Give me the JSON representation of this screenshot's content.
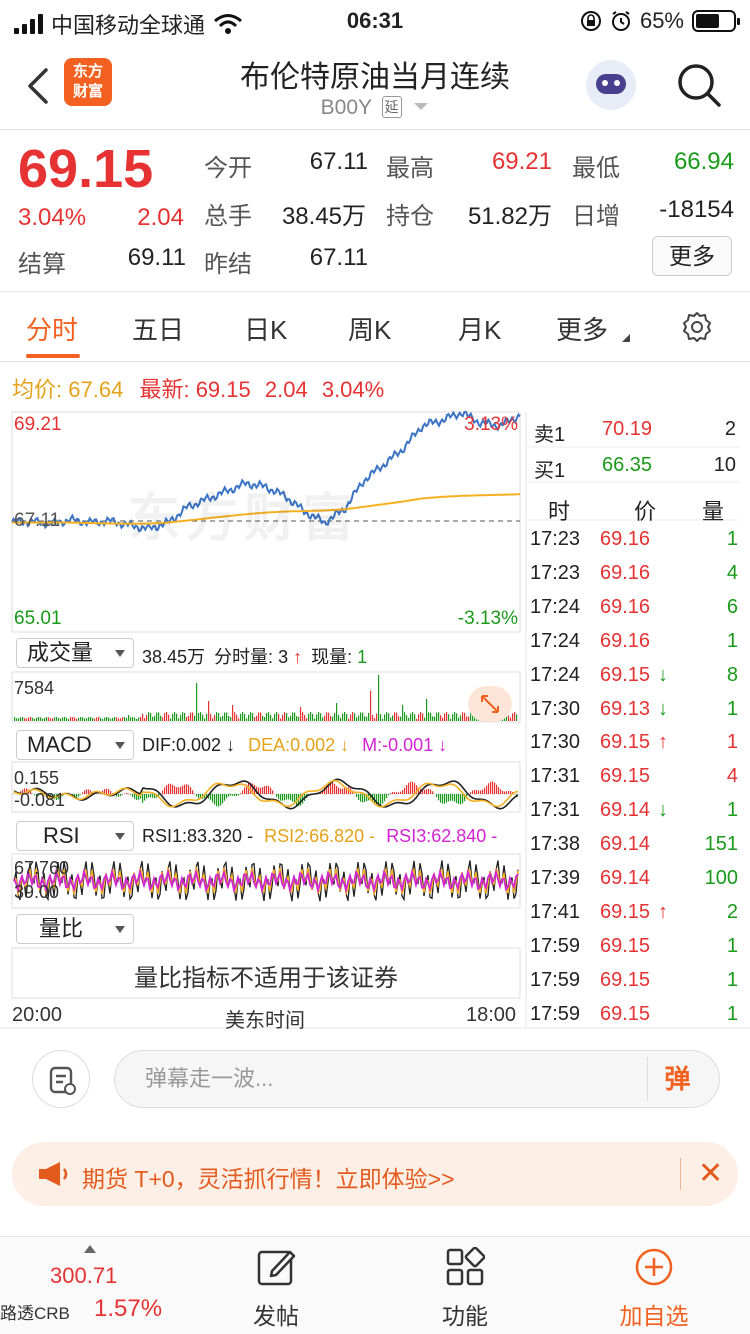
{
  "status_bar": {
    "carrier": "中国移动全球通",
    "time": "06:31",
    "battery": "65%",
    "battery_level": 0.65
  },
  "header": {
    "logo_text_1": "东方",
    "logo_text_2": "财富",
    "title": "布伦特原油当月连续",
    "code": "B00Y",
    "delay_tag": "延"
  },
  "quote": {
    "price": "69.15",
    "change_pct": "3.04%",
    "change": "2.04",
    "stats": [
      {
        "label": "今开",
        "value": "67.11",
        "color": "#222"
      },
      {
        "label": "最高",
        "value": "69.21",
        "color": "#e63232"
      },
      {
        "label": "最低",
        "value": "66.94",
        "color": "#1a9a1a"
      },
      {
        "label": "总手",
        "value": "38.45万",
        "color": "#222"
      },
      {
        "label": "持仓",
        "value": "51.82万",
        "color": "#222"
      },
      {
        "label": "日增",
        "value": "-18154",
        "color": "#222"
      },
      {
        "label": "结算",
        "value": "69.11",
        "color": "#222"
      },
      {
        "label": "昨结",
        "value": "67.11",
        "color": "#222"
      }
    ],
    "more_button": "更多"
  },
  "tabs": [
    "分时",
    "五日",
    "日K",
    "周K",
    "月K",
    "更多"
  ],
  "info_line": {
    "avg_label": "均价:",
    "avg_value": "67.64",
    "latest_label": "最新:",
    "latest_value": "69.15",
    "latest_change": "2.04",
    "latest_pct": "3.04%"
  },
  "price_chart": {
    "top_left": "69.21",
    "top_right": "3.13%",
    "mid_left": "67.11",
    "bottom_left": "65.01",
    "bottom_right": "-3.13%",
    "watermark": "东方财富",
    "time_start": "20:00",
    "time_mid": "美东时间",
    "time_end": "18:00"
  },
  "chart_data": {
    "type": "line",
    "series": [
      {
        "values": [
          67.1,
          67.12,
          67.08,
          67.15,
          67.1,
          67.13,
          67.05,
          66.98,
          67.1,
          67.4,
          67.55,
          67.7,
          67.85,
          67.78,
          67.6,
          67.3,
          67.1,
          67.35,
          67.9,
          68.2,
          68.5,
          68.95,
          69.05,
          69.2,
          69.0,
          68.95,
          69.15
        ]
      },
      {
        "values": [
          67.1,
          67.1,
          67.1,
          67.1,
          67.09,
          67.08,
          67.08,
          67.08,
          67.1,
          67.14,
          67.18,
          67.22,
          67.26,
          67.29,
          67.31,
          67.32,
          67.33,
          67.35,
          67.4,
          67.45,
          67.5,
          67.56,
          67.59,
          67.61,
          67.62,
          67.63,
          67.64
        ]
      }
    ],
    "ylim": [
      65.01,
      69.21
    ],
    "reference": 67.11
  },
  "volume_panel": {
    "selector": "成交量",
    "total": "38.45万",
    "period_label": "分时量:",
    "period_value": "3",
    "now_label": "现量:",
    "now_value": "1",
    "max_label": "7584"
  },
  "macd_panel": {
    "selector": "MACD",
    "dif": "DIF:0.002",
    "dea": "DEA:0.002",
    "m": "M:-0.001",
    "upper": "0.155",
    "lower": "-0.081"
  },
  "rsi_panel": {
    "selector": "RSI",
    "rsi1": "RSI1:83.320",
    "rsi2": "RSI2:66.820",
    "rsi3": "RSI3:62.840",
    "upper": "67.760",
    "lower": "39.00"
  },
  "ratio_panel": {
    "selector": "量比",
    "message": "量比指标不适用于该证券"
  },
  "order_book": [
    {
      "label": "卖1",
      "price": "70.19",
      "qty": "2",
      "price_color": "#e63232"
    },
    {
      "label": "买1",
      "price": "66.35",
      "qty": "10",
      "price_color": "#1a9a1a"
    }
  ],
  "ticks_header": {
    "time": "时",
    "price": "价",
    "qty": "量"
  },
  "ticks": [
    {
      "time": "17:23",
      "price": "69.16",
      "arrow": "",
      "qty": "1",
      "qty_color": "#1a9a1a"
    },
    {
      "time": "17:23",
      "price": "69.16",
      "arrow": "",
      "qty": "4",
      "qty_color": "#1a9a1a"
    },
    {
      "time": "17:24",
      "price": "69.16",
      "arrow": "",
      "qty": "6",
      "qty_color": "#1a9a1a"
    },
    {
      "time": "17:24",
      "price": "69.16",
      "arrow": "",
      "qty": "1",
      "qty_color": "#1a9a1a"
    },
    {
      "time": "17:24",
      "price": "69.15",
      "arrow": "↓",
      "qty": "8",
      "qty_color": "#1a9a1a"
    },
    {
      "time": "17:30",
      "price": "69.13",
      "arrow": "↓",
      "qty": "1",
      "qty_color": "#1a9a1a"
    },
    {
      "time": "17:30",
      "price": "69.15",
      "arrow": "↑",
      "qty": "1",
      "qty_color": "#e63232"
    },
    {
      "time": "17:31",
      "price": "69.15",
      "arrow": "",
      "qty": "4",
      "qty_color": "#e63232"
    },
    {
      "time": "17:31",
      "price": "69.14",
      "arrow": "↓",
      "qty": "1",
      "qty_color": "#1a9a1a"
    },
    {
      "time": "17:38",
      "price": "69.14",
      "arrow": "",
      "qty": "151",
      "qty_color": "#1a9a1a"
    },
    {
      "time": "17:39",
      "price": "69.14",
      "arrow": "",
      "qty": "100",
      "qty_color": "#1a9a1a"
    },
    {
      "time": "17:41",
      "price": "69.15",
      "arrow": "↑",
      "qty": "2",
      "qty_color": "#1a9a1a"
    },
    {
      "time": "17:59",
      "price": "69.15",
      "arrow": "",
      "qty": "1",
      "qty_color": "#1a9a1a"
    },
    {
      "time": "17:59",
      "price": "69.15",
      "arrow": "",
      "qty": "1",
      "qty_color": "#1a9a1a"
    },
    {
      "time": "17:59",
      "price": "69.15",
      "arrow": "",
      "qty": "1",
      "qty_color": "#1a9a1a"
    }
  ],
  "comment": {
    "placeholder": "弹幕走一波...",
    "danmaku": "弹"
  },
  "promo": {
    "text": "期货 T+0，灵活抓行情！立即体验>>"
  },
  "bottom_bar": {
    "index_value": "300.71",
    "index_name": "路透CRB",
    "index_pct": "1.57%",
    "post": "发帖",
    "functions": "功能",
    "add_watch": "加自选"
  },
  "colors": {
    "up": "#e63232",
    "down": "#1a9a1a",
    "accent": "#f2611f",
    "price_line": "#3b74c4",
    "avg_line": "#f5b022",
    "magenta": "#d423d4"
  }
}
